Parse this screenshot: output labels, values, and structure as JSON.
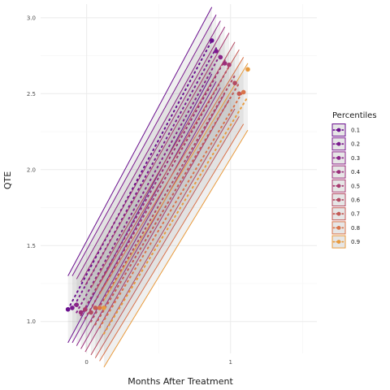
{
  "chart_data": {
    "type": "scatter",
    "title": "",
    "xlabel": "Months After Treatment",
    "ylabel": "QTE",
    "xlim": [
      -0.32,
      1.6
    ],
    "ylim": [
      0.79,
      3.09
    ],
    "x_ticks": [
      0,
      1
    ],
    "x_tick_labels": [
      "0",
      "1"
    ],
    "y_ticks": [
      1.0,
      1.5,
      2.0,
      2.5,
      3.0
    ],
    "y_tick_labels": [
      "1.0",
      "1.5",
      "2.0",
      "2.5",
      "3.0"
    ],
    "grid": true,
    "legend": {
      "title": "Percentiles",
      "position": "right",
      "labels": [
        "0.1",
        "0.2",
        "0.3",
        "0.4",
        "0.5",
        "0.6",
        "0.7",
        "0.8",
        "0.9"
      ]
    },
    "series": [
      {
        "name": "0.1",
        "color": "#6a0f8e",
        "points": [
          {
            "x": -0.13,
            "y": 1.08
          },
          {
            "x": 0.87,
            "y": 2.85
          }
        ],
        "fit": {
          "x0": -0.13,
          "y0": 1.08,
          "x1": 0.87,
          "y1": 2.85
        },
        "band_width": 0.22
      },
      {
        "name": "0.2",
        "color": "#7b1a8f",
        "points": [
          {
            "x": -0.1,
            "y": 1.09
          },
          {
            "x": 0.9,
            "y": 2.78
          }
        ],
        "fit": {
          "x0": -0.1,
          "y0": 1.08,
          "x1": 0.9,
          "y1": 2.8
        },
        "band_width": 0.22
      },
      {
        "name": "0.3",
        "color": "#8a2388",
        "points": [
          {
            "x": -0.07,
            "y": 1.11
          },
          {
            "x": 0.93,
            "y": 2.74
          }
        ],
        "fit": {
          "x0": -0.07,
          "y0": 1.06,
          "x1": 0.93,
          "y1": 2.76
        },
        "band_width": 0.22
      },
      {
        "name": "0.4",
        "color": "#9b2d7a",
        "points": [
          {
            "x": -0.04,
            "y": 1.06
          },
          {
            "x": 0.96,
            "y": 2.7
          }
        ],
        "fit": {
          "x0": -0.04,
          "y0": 1.04,
          "x1": 0.96,
          "y1": 2.72
        },
        "band_width": 0.22
      },
      {
        "name": "0.5",
        "color": "#a83a70",
        "points": [
          {
            "x": -0.01,
            "y": 1.08
          },
          {
            "x": 0.99,
            "y": 2.69
          }
        ],
        "fit": {
          "x0": -0.01,
          "y0": 1.02,
          "x1": 0.99,
          "y1": 2.68
        },
        "band_width": 0.22
      },
      {
        "name": "0.6",
        "color": "#b34a62",
        "points": [
          {
            "x": 0.03,
            "y": 1.06
          },
          {
            "x": 1.03,
            "y": 2.57
          }
        ],
        "fit": {
          "x0": 0.03,
          "y0": 1.0,
          "x1": 1.03,
          "y1": 2.62
        },
        "band_width": 0.22
      },
      {
        "name": "0.7",
        "color": "#c45a55",
        "points": [
          {
            "x": 0.06,
            "y": 1.09
          },
          {
            "x": 1.06,
            "y": 2.5
          }
        ],
        "fit": {
          "x0": 0.06,
          "y0": 0.98,
          "x1": 1.06,
          "y1": 2.57
        },
        "band_width": 0.22
      },
      {
        "name": "0.8",
        "color": "#d9734a",
        "points": [
          {
            "x": 0.09,
            "y": 1.09
          },
          {
            "x": 1.09,
            "y": 2.51
          }
        ],
        "fit": {
          "x0": 0.09,
          "y0": 0.96,
          "x1": 1.09,
          "y1": 2.52
        },
        "band_width": 0.22
      },
      {
        "name": "0.9",
        "color": "#e89a3c",
        "points": [
          {
            "x": 0.12,
            "y": 1.09
          },
          {
            "x": 1.12,
            "y": 2.66
          }
        ],
        "fit": {
          "x0": 0.12,
          "y0": 0.92,
          "x1": 1.12,
          "y1": 2.48
        },
        "band_width": 0.22
      }
    ]
  }
}
